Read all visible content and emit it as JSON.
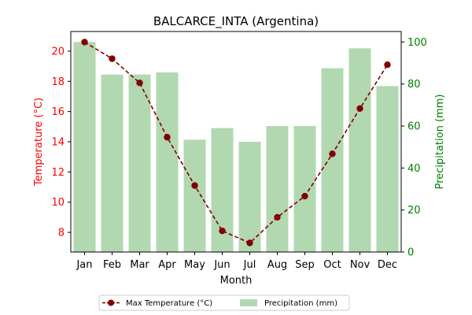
{
  "chart_data": {
    "type": "bar+line",
    "title": "BALCARCE_INTA (Argentina)",
    "xlabel": "Month",
    "ylabel_left": "Temperature (°C)",
    "ylabel_right": "Precipitation (mm)",
    "categories": [
      "Jan",
      "Feb",
      "Mar",
      "Apr",
      "May",
      "Jun",
      "Jul",
      "Aug",
      "Sep",
      "Oct",
      "Nov",
      "Dec"
    ],
    "left_axis": {
      "range": [
        6.7,
        21.3
      ],
      "ticks": [
        8,
        10,
        12,
        14,
        16,
        18,
        20
      ],
      "color": "#ff0000"
    },
    "right_axis": {
      "range": [
        0,
        105
      ],
      "ticks": [
        0,
        20,
        40,
        60,
        80,
        100
      ],
      "color": "#008000"
    },
    "series": [
      {
        "name": "Max Temperature (°C)",
        "kind": "line",
        "axis": "left",
        "color": "#800000",
        "values": [
          20.6,
          19.5,
          17.9,
          14.3,
          11.1,
          8.1,
          7.3,
          9.0,
          10.4,
          13.2,
          16.2,
          19.1
        ]
      },
      {
        "name": "Precipitation (mm)",
        "kind": "bar",
        "axis": "right",
        "color": "#b2d8b2",
        "values": [
          100,
          84.5,
          84.5,
          85.5,
          53.5,
          59,
          52.5,
          60,
          60,
          87.5,
          97,
          79
        ]
      }
    ],
    "legend": "bottom-center",
    "grid": false
  }
}
